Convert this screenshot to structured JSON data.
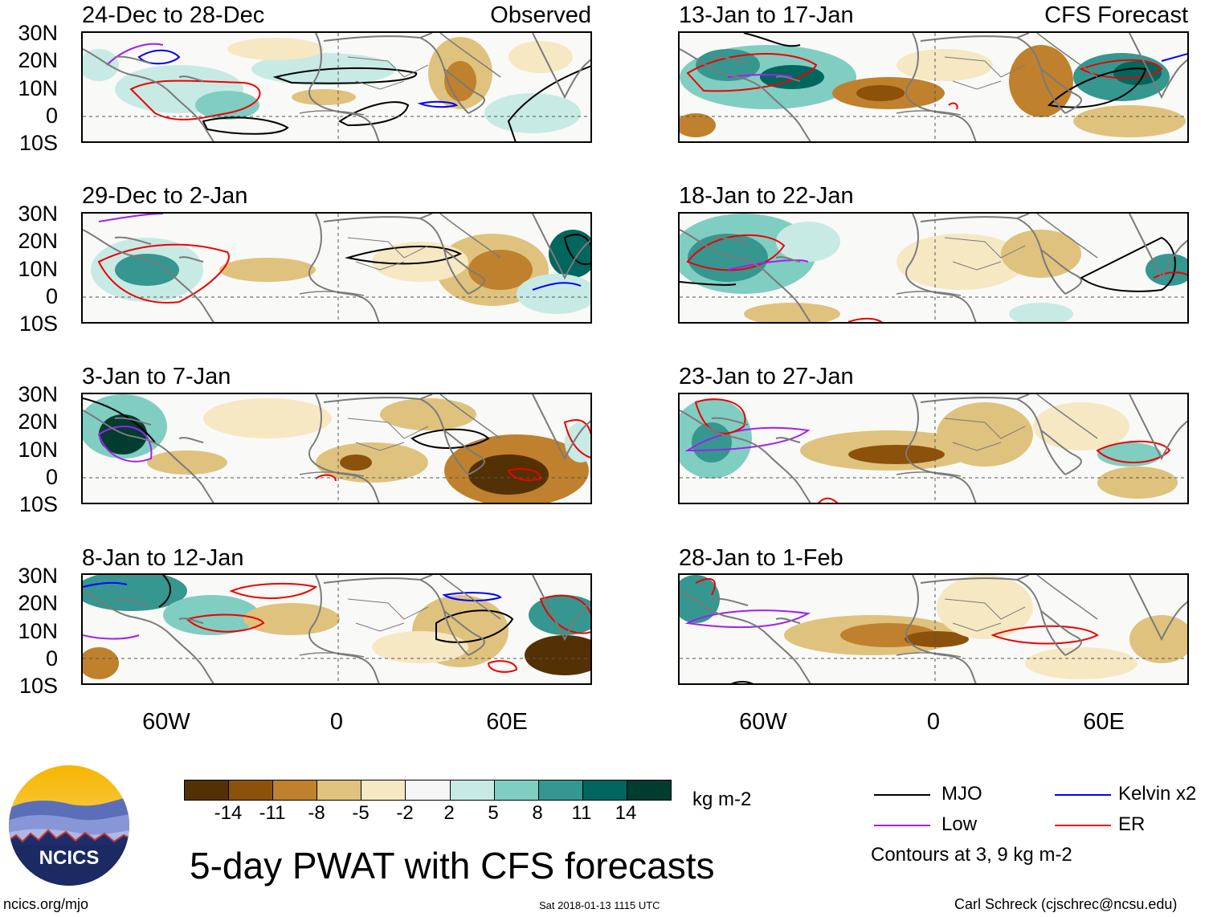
{
  "title": "5-day PWAT with CFS forecasts",
  "column_headers": {
    "observed": "Observed",
    "forecast": "CFS Forecast"
  },
  "lat_labels": [
    "30N",
    "20N",
    "10N",
    "0",
    "10S"
  ],
  "lon_labels": [
    "60W",
    "0",
    "60E"
  ],
  "panels": [
    {
      "period": "24-Dec to 28-Dec",
      "source": "Observed"
    },
    {
      "period": "29-Dec to 2-Jan",
      "source": "Observed"
    },
    {
      "period": "3-Jan to 7-Jan",
      "source": "Observed"
    },
    {
      "period": "8-Jan to 12-Jan",
      "source": "Observed"
    },
    {
      "period": "13-Jan to 17-Jan",
      "source": "CFS Forecast"
    },
    {
      "period": "18-Jan to 22-Jan",
      "source": "CFS Forecast"
    },
    {
      "period": "23-Jan to 27-Jan",
      "source": "CFS Forecast"
    },
    {
      "period": "28-Jan to 1-Feb",
      "source": "CFS Forecast"
    }
  ],
  "colorbar": {
    "unit": "kg m-2",
    "tick_labels": [
      "-14",
      "-11",
      "-8",
      "-5",
      "-2",
      "2",
      "5",
      "8",
      "11",
      "14"
    ],
    "colors": [
      "#543005",
      "#8c510a",
      "#bf812d",
      "#dfc27d",
      "#f6e8c3",
      "#f5f5f5",
      "#c7eae5",
      "#80cdc1",
      "#35978f",
      "#01665e",
      "#003c30"
    ]
  },
  "legend": {
    "items": [
      {
        "label": "MJO",
        "color": "#000000"
      },
      {
        "label": "Kelvin x2",
        "color": "#0000ff"
      },
      {
        "label": "Low",
        "color": "#a020f0"
      },
      {
        "label": "ER",
        "color": "#ff0000"
      }
    ],
    "note": "Contours at 3, 9 kg m-2"
  },
  "footer": {
    "website": "ncics.org/mjo",
    "timestamp": "Sat 2018-01-13 1115 UTC",
    "credit": "Carl Schreck (cjschrec@ncsu.edu)"
  },
  "logo_text": "NCICS"
}
